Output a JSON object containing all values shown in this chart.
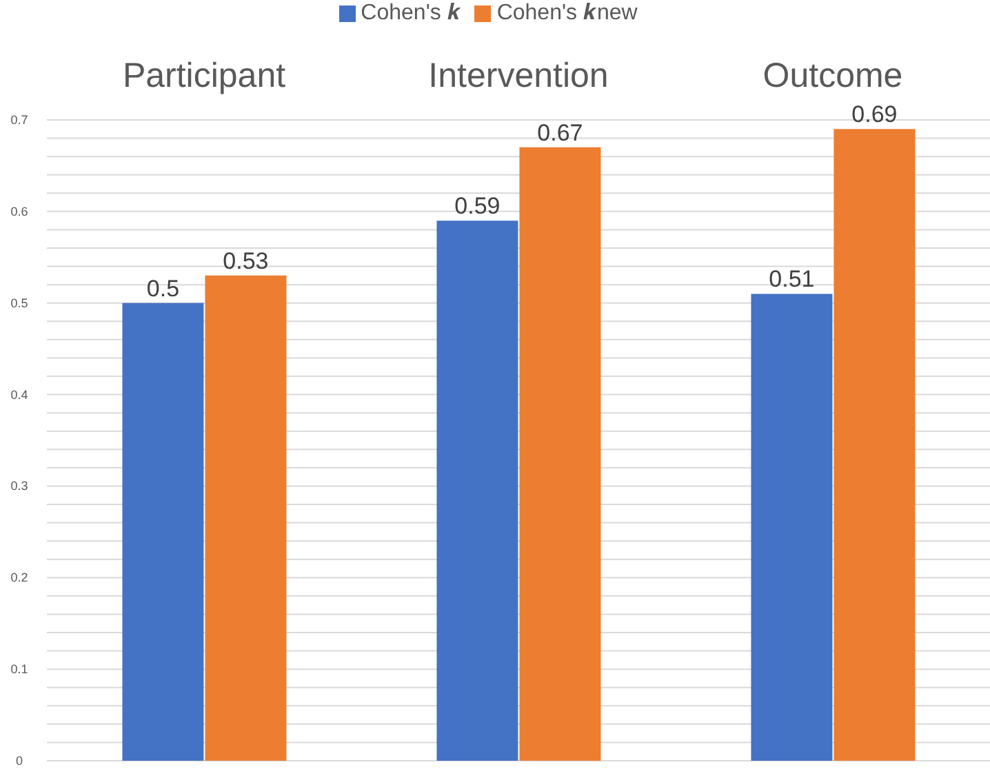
{
  "chart_data": {
    "type": "bar",
    "categories": [
      "Participant",
      "Intervention",
      "Outcome"
    ],
    "series": [
      {
        "name": "Cohen's 𝒌",
        "color": "#4472c4",
        "values": [
          0.5,
          0.59,
          0.51
        ]
      },
      {
        "name": "Cohen's 𝒌new",
        "color": "#ed7d31",
        "values": [
          0.53,
          0.67,
          0.69
        ]
      }
    ],
    "ylim": [
      0,
      0.7
    ],
    "yticks": [
      0,
      {
        "value": 0.02,
        "label": null
      },
      {
        "value": 0.04,
        "label": null
      },
      {
        "value": 0.06,
        "label": null
      },
      {
        "value": 0.08,
        "label": null
      },
      0.1,
      {
        "value": 0.12,
        "label": null
      },
      {
        "value": 0.14,
        "label": null
      },
      {
        "value": 0.16,
        "label": null
      },
      {
        "value": 0.18,
        "label": null
      },
      0.2,
      {
        "value": 0.22,
        "label": null
      },
      {
        "value": 0.24,
        "label": null
      },
      {
        "value": 0.26,
        "label": null
      },
      {
        "value": 0.28,
        "label": null
      },
      0.3,
      {
        "value": 0.32,
        "label": null
      },
      {
        "value": 0.34,
        "label": null
      },
      {
        "value": 0.36,
        "label": null
      },
      {
        "value": 0.38,
        "label": null
      },
      0.4,
      {
        "value": 0.42,
        "label": null
      },
      {
        "value": 0.44,
        "label": null
      },
      {
        "value": 0.46,
        "label": null
      },
      {
        "value": 0.48,
        "label": null
      },
      0.5,
      {
        "value": 0.52,
        "label": null
      },
      {
        "value": 0.54,
        "label": null
      },
      {
        "value": 0.56,
        "label": null
      },
      {
        "value": 0.58,
        "label": null
      },
      0.6,
      {
        "value": 0.62,
        "label": null
      },
      {
        "value": 0.64,
        "label": null
      },
      {
        "value": 0.66,
        "label": null
      },
      {
        "value": 0.68,
        "label": null
      },
      0.7
    ],
    "grid": "y",
    "legend": "top",
    "data_labels": true
  }
}
